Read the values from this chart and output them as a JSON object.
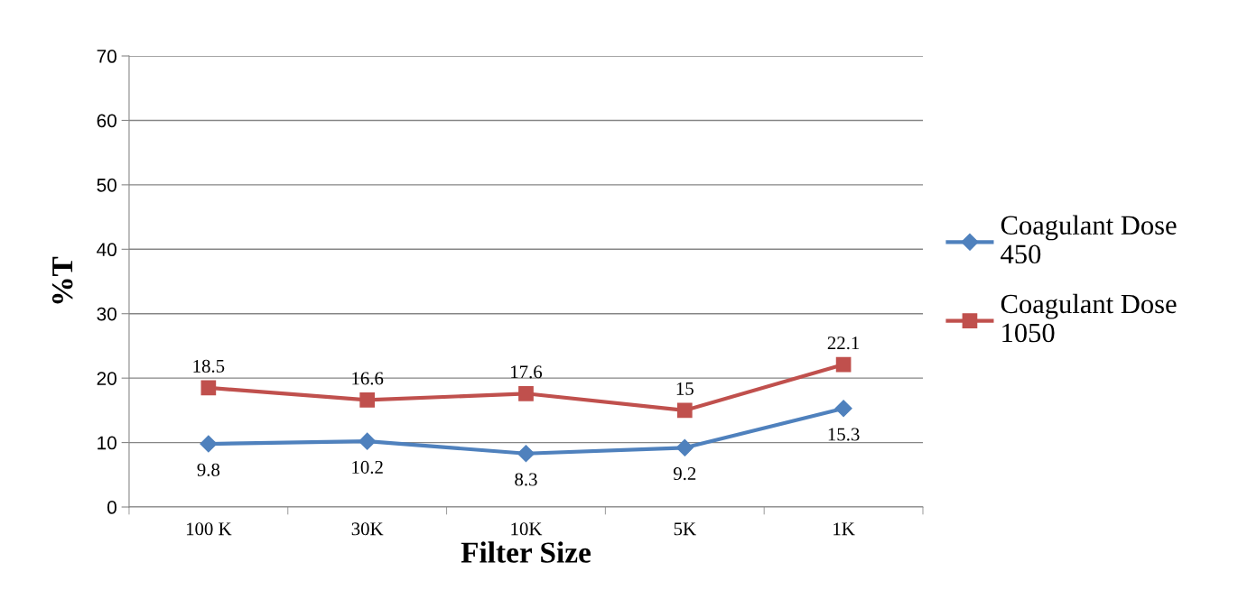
{
  "chart_data": {
    "type": "line",
    "xlabel": "Filter Size",
    "ylabel": "%T",
    "categories": [
      "100 K",
      "30K",
      "10K",
      "5K",
      "1K"
    ],
    "series": [
      {
        "name": "Coagulant Dose 450",
        "color": "#4f81bd",
        "marker": "diamond",
        "values": [
          9.8,
          10.2,
          8.3,
          9.2,
          15.3
        ]
      },
      {
        "name": "Coagulant Dose 1050",
        "color": "#c0504d",
        "marker": "square",
        "values": [
          18.5,
          16.6,
          17.6,
          15,
          22.1
        ]
      }
    ],
    "ylim": [
      0,
      70
    ],
    "yticks": [
      0,
      10,
      20,
      30,
      40,
      50,
      60,
      70
    ],
    "grid": "y",
    "legend": "right",
    "data_labels": true,
    "line_style": "solid"
  }
}
